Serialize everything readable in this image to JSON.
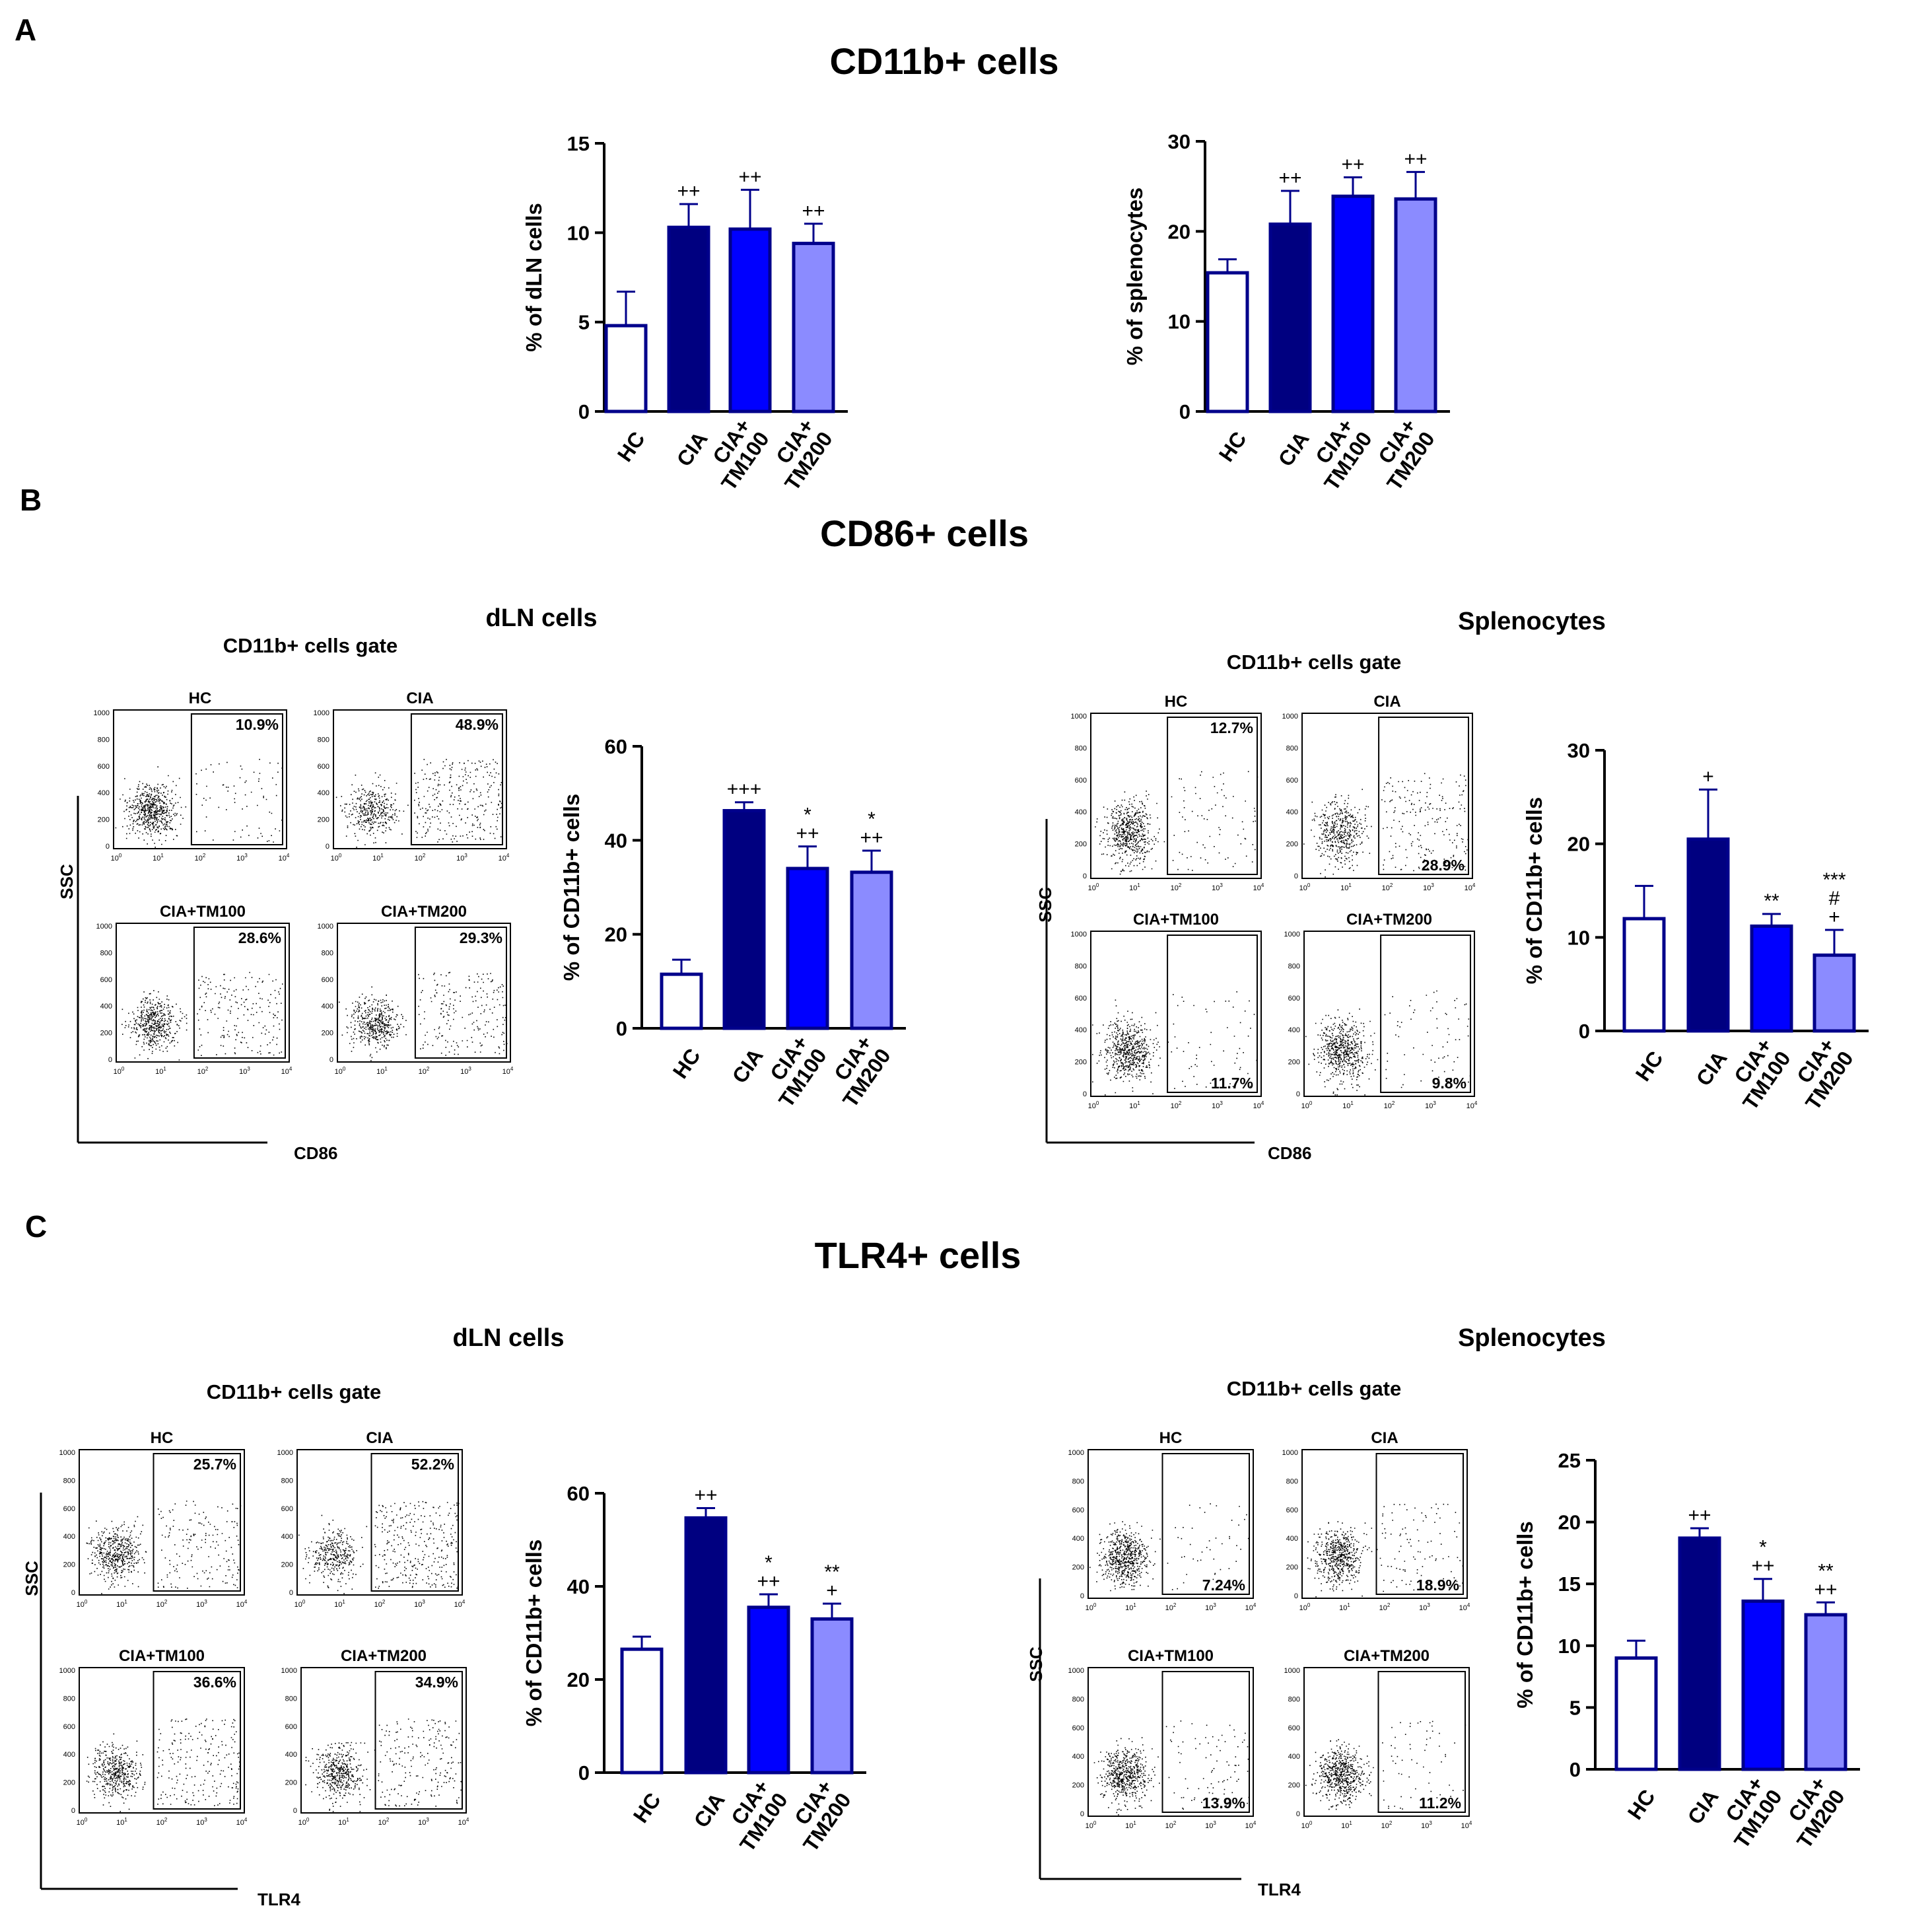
{
  "panels": {
    "A": {
      "letter": "A",
      "title": "CD11b+ cells"
    },
    "B": {
      "letter": "B",
      "title": "CD86+ cells",
      "dln_label": "dLN cells",
      "spl_label": "Splenocytes",
      "gate_label": "CD11b+ cells gate",
      "ssc_label": "SSC",
      "marker_label": "CD86"
    },
    "C": {
      "letter": "C",
      "title": "TLR4+ cells",
      "dln_label": "dLN cells",
      "spl_label": "Splenocytes",
      "gate_label": "CD11b+ cells gate",
      "ssc_label": "SSC",
      "marker_label": "TLR4"
    }
  },
  "colors": {
    "hc_fill": "#ffffff",
    "cia_fill": "#000080",
    "tm100_fill": "#0000ff",
    "tm200_fill": "#8b8bff",
    "bar_edge": "#00008b",
    "error_bar": "#00008b"
  },
  "flow_plots": {
    "B_dln": [
      {
        "label": "HC",
        "percent": "10.9%"
      },
      {
        "label": "CIA",
        "percent": "48.9%"
      },
      {
        "label": "CIA+TM100",
        "percent": "28.6%"
      },
      {
        "label": "CIA+TM200",
        "percent": "29.3%"
      }
    ],
    "B_spl": [
      {
        "label": "HC",
        "percent": "12.7%"
      },
      {
        "label": "CIA",
        "percent": "28.9%"
      },
      {
        "label": "CIA+TM100",
        "percent": "11.7%"
      },
      {
        "label": "CIA+TM200",
        "percent": "9.8%"
      }
    ],
    "C_dln": [
      {
        "label": "HC",
        "percent": "25.7%"
      },
      {
        "label": "CIA",
        "percent": "52.2%"
      },
      {
        "label": "CIA+TM100",
        "percent": "36.6%"
      },
      {
        "label": "CIA+TM200",
        "percent": "34.9%"
      }
    ],
    "C_spl": [
      {
        "label": "HC",
        "percent": "7.24%"
      },
      {
        "label": "CIA",
        "percent": "18.9%"
      },
      {
        "label": "CIA+TM100",
        "percent": "13.9%"
      },
      {
        "label": "CIA+TM200",
        "percent": "11.2%"
      }
    ],
    "y_ticks": [
      "0",
      "200",
      "400",
      "600",
      "800",
      "1000"
    ]
  },
  "chart_data": [
    {
      "id": "A_dln",
      "type": "bar",
      "categories": [
        "HC",
        "CIA",
        "CIA+ TM100",
        "CIA+ TM200"
      ],
      "values": [
        4.8,
        10.3,
        10.2,
        9.4
      ],
      "errors": [
        1.9,
        1.3,
        2.2,
        1.1
      ],
      "annotations": [
        "",
        "++",
        "++",
        "++"
      ],
      "ylabel": "% of dLN cells",
      "ylim": [
        0,
        15
      ],
      "yticks": [
        0,
        5,
        10,
        15
      ]
    },
    {
      "id": "A_spl",
      "type": "bar",
      "categories": [
        "HC",
        "CIA",
        "CIA+ TM100",
        "CIA+ TM200"
      ],
      "values": [
        15.4,
        20.8,
        23.9,
        23.6
      ],
      "errors": [
        1.5,
        3.7,
        2.1,
        3.0
      ],
      "annotations": [
        "",
        "++",
        "++",
        "++"
      ],
      "ylabel": "% of splenocytes",
      "ylim": [
        0,
        30
      ],
      "yticks": [
        0,
        10,
        20,
        30
      ]
    },
    {
      "id": "B_dln",
      "type": "bar",
      "categories": [
        "HC",
        "CIA",
        "CIA+ TM100",
        "CIA+ TM200"
      ],
      "values": [
        11.5,
        46.3,
        34.0,
        33.2
      ],
      "errors": [
        3.1,
        1.8,
        4.7,
        4.6
      ],
      "annotations": [
        "",
        "+++",
        "* ++",
        "* ++"
      ],
      "ylabel": "% of CD11b+ cells",
      "ylim": [
        0,
        60
      ],
      "yticks": [
        0,
        20,
        40,
        60
      ]
    },
    {
      "id": "B_spl",
      "type": "bar",
      "categories": [
        "HC",
        "CIA",
        "CIA+ TM100",
        "CIA+ TM200"
      ],
      "values": [
        12.0,
        20.5,
        11.2,
        8.1
      ],
      "errors": [
        3.5,
        5.3,
        1.3,
        2.7
      ],
      "annotations": [
        "",
        "+",
        "**",
        "*** # +"
      ],
      "ylabel": "% of CD11b+ cells",
      "ylim": [
        0,
        30
      ],
      "yticks": [
        0,
        10,
        20,
        30
      ]
    },
    {
      "id": "C_dln",
      "type": "bar",
      "categories": [
        "HC",
        "CIA",
        "CIA+ TM100",
        "CIA+ TM200"
      ],
      "values": [
        26.5,
        54.7,
        35.5,
        33.0
      ],
      "errors": [
        2.7,
        2.1,
        2.8,
        3.3
      ],
      "annotations": [
        "",
        "++",
        "* ++",
        "** +"
      ],
      "ylabel": "% of CD11b+ cells",
      "ylim": [
        0,
        60
      ],
      "yticks": [
        0,
        20,
        40,
        60
      ]
    },
    {
      "id": "C_spl",
      "type": "bar",
      "categories": [
        "HC",
        "CIA",
        "CIA+ TM100",
        "CIA+ TM200"
      ],
      "values": [
        9.0,
        18.7,
        13.6,
        12.5
      ],
      "errors": [
        1.4,
        0.8,
        1.8,
        1.0
      ],
      "annotations": [
        "",
        "++",
        "* ++",
        "** ++"
      ],
      "ylabel": "% of CD11b+ cells",
      "ylim": [
        0,
        25
      ],
      "yticks": [
        0,
        5,
        10,
        15,
        20,
        25
      ]
    }
  ]
}
